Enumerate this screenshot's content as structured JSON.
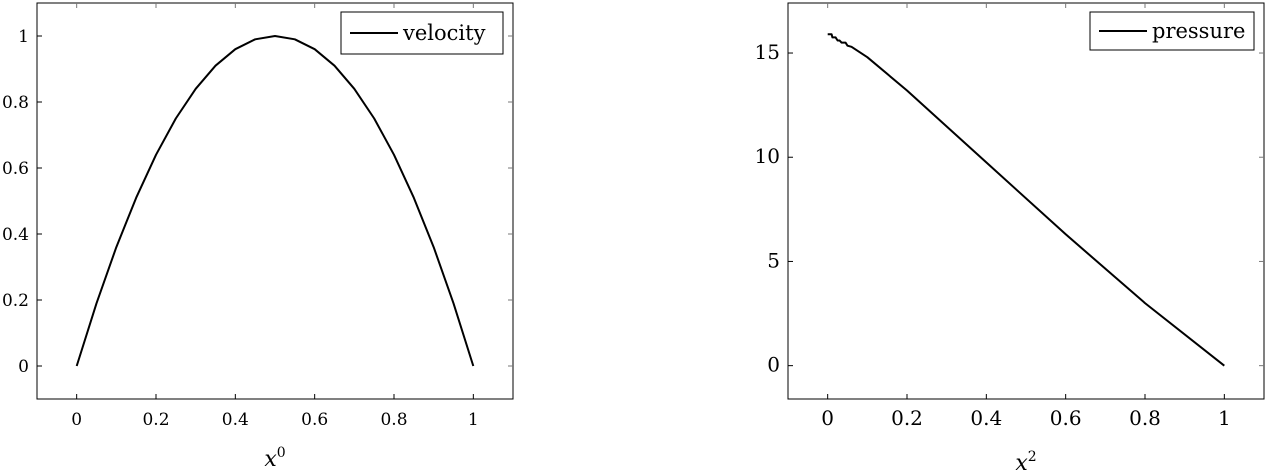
{
  "chart_data": [
    {
      "type": "line",
      "title": "",
      "xlabel": "x",
      "xlabel_superscript": "0",
      "ylabel": "",
      "xlim": [
        -0.1,
        1.1
      ],
      "ylim": [
        -0.1,
        1.1
      ],
      "xticks": [
        0,
        0.2,
        0.4,
        0.6,
        0.8,
        1
      ],
      "yticks": [
        0,
        0.2,
        0.4,
        0.6,
        0.8,
        1
      ],
      "xtick_labels": [
        "0",
        "0.2",
        "0.4",
        "0.6",
        "0.8",
        "1"
      ],
      "ytick_labels": [
        "0",
        "0.2",
        "0.4",
        "0.6",
        "0.8",
        "1"
      ],
      "grid": false,
      "legend_position": "top-right",
      "series": [
        {
          "name": "velocity",
          "x": [
            0,
            0.05,
            0.1,
            0.15,
            0.2,
            0.25,
            0.3,
            0.35,
            0.4,
            0.45,
            0.5,
            0.55,
            0.6,
            0.65,
            0.7,
            0.75,
            0.8,
            0.85,
            0.9,
            0.95,
            1
          ],
          "y": [
            0,
            0.19,
            0.36,
            0.51,
            0.64,
            0.75,
            0.84,
            0.91,
            0.96,
            0.99,
            1,
            0.99,
            0.96,
            0.91,
            0.84,
            0.75,
            0.64,
            0.51,
            0.36,
            0.19,
            0
          ]
        }
      ]
    },
    {
      "type": "line",
      "title": "",
      "xlabel": "x",
      "xlabel_superscript": "2",
      "ylabel": "",
      "xlim": [
        -0.1,
        1.1
      ],
      "ylim": [
        -1.6,
        17.4
      ],
      "xticks": [
        0,
        0.2,
        0.4,
        0.6,
        0.8,
        1
      ],
      "yticks": [
        0,
        5,
        10,
        15
      ],
      "xtick_labels": [
        "0",
        "0.2",
        "0.4",
        "0.6",
        "0.8",
        "1"
      ],
      "ytick_labels": [
        "0",
        "5",
        "10",
        "15"
      ],
      "grid": false,
      "legend_position": "top-right",
      "series": [
        {
          "name": "pressure",
          "x": [
            0,
            0.01,
            0.012,
            0.02,
            0.025,
            0.03,
            0.035,
            0.045,
            0.05,
            0.06,
            0.1,
            0.2,
            0.4,
            0.6,
            0.8,
            1
          ],
          "y": [
            15.9,
            15.9,
            15.75,
            15.75,
            15.6,
            15.6,
            15.5,
            15.5,
            15.35,
            15.3,
            14.8,
            13.2,
            9.75,
            6.3,
            3.0,
            0
          ]
        }
      ]
    }
  ]
}
